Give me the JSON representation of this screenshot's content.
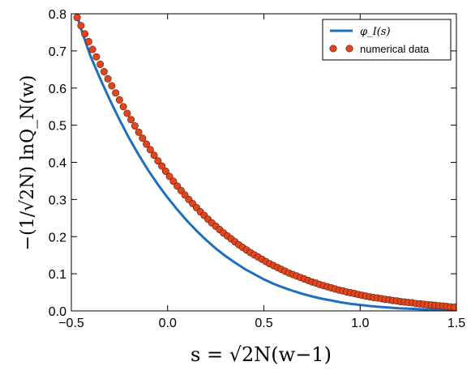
{
  "chart_data": {
    "type": "line",
    "xlim": [
      -0.5,
      1.5
    ],
    "ylim": [
      0.0,
      0.8
    ],
    "xticks": [
      -0.5,
      0.0,
      0.5,
      1.0,
      1.5
    ],
    "yticks": [
      0.0,
      0.1,
      0.2,
      0.3,
      0.4,
      0.5,
      0.6,
      0.7,
      0.8
    ],
    "xtick_labels": [
      "−0.5",
      "0.0",
      "0.5",
      "1.0",
      "1.5"
    ],
    "ytick_labels": [
      "0.0",
      "0.1",
      "0.2",
      "0.3",
      "0.4",
      "0.5",
      "0.6",
      "0.7",
      "0.8"
    ],
    "xlabel": "s = √2N(w−1)",
    "ylabel": "−(1/√2N) lnQ_N(w)",
    "grid": false,
    "legend_position": "top-right",
    "series": [
      {
        "name": "φ_I(s)",
        "kind": "line",
        "color": "#1f6fbf",
        "x": [
          -0.47,
          -0.45,
          -0.4,
          -0.35,
          -0.3,
          -0.25,
          -0.2,
          -0.15,
          -0.1,
          -0.05,
          0.0,
          0.05,
          0.1,
          0.15,
          0.2,
          0.25,
          0.3,
          0.35,
          0.4,
          0.45,
          0.5,
          0.55,
          0.6,
          0.65,
          0.7,
          0.75,
          0.8,
          0.85,
          0.9,
          0.95,
          1.0,
          1.05,
          1.1,
          1.15,
          1.2,
          1.25,
          1.3,
          1.35,
          1.4,
          1.45,
          1.5
        ],
        "y": [
          0.795,
          0.76,
          0.685,
          0.625,
          0.568,
          0.515,
          0.465,
          0.42,
          0.378,
          0.34,
          0.305,
          0.273,
          0.243,
          0.216,
          0.191,
          0.168,
          0.148,
          0.13,
          0.113,
          0.099,
          0.085,
          0.073,
          0.063,
          0.054,
          0.046,
          0.039,
          0.033,
          0.028,
          0.023,
          0.019,
          0.016,
          0.013,
          0.011,
          0.009,
          0.007,
          0.006,
          0.005,
          0.004,
          0.003,
          0.002,
          0.002
        ]
      },
      {
        "name": "numerical data",
        "kind": "scatter",
        "color": "#e2461e",
        "x": [
          -0.47,
          -0.45,
          -0.43,
          -0.41,
          -0.39,
          -0.37,
          -0.35,
          -0.33,
          -0.31,
          -0.29,
          -0.27,
          -0.25,
          -0.23,
          -0.21,
          -0.19,
          -0.17,
          -0.15,
          -0.13,
          -0.11,
          -0.09,
          -0.07,
          -0.05,
          -0.03,
          -0.01,
          0.01,
          0.03,
          0.05,
          0.07,
          0.09,
          0.11,
          0.13,
          0.15,
          0.17,
          0.19,
          0.21,
          0.23,
          0.25,
          0.27,
          0.29,
          0.31,
          0.33,
          0.35,
          0.37,
          0.39,
          0.41,
          0.43,
          0.45,
          0.47,
          0.49,
          0.51,
          0.53,
          0.55,
          0.57,
          0.59,
          0.61,
          0.63,
          0.65,
          0.67,
          0.69,
          0.71,
          0.73,
          0.75,
          0.77,
          0.79,
          0.81,
          0.83,
          0.85,
          0.87,
          0.89,
          0.91,
          0.93,
          0.95,
          0.97,
          0.99,
          1.01,
          1.03,
          1.05,
          1.07,
          1.09,
          1.11,
          1.13,
          1.15,
          1.17,
          1.19,
          1.21,
          1.23,
          1.25,
          1.27,
          1.29,
          1.31,
          1.33,
          1.35,
          1.37,
          1.39,
          1.41,
          1.43,
          1.45,
          1.47,
          1.49
        ],
        "y": [
          0.79,
          0.768,
          0.746,
          0.725,
          0.704,
          0.684,
          0.664,
          0.644,
          0.625,
          0.606,
          0.587,
          0.568,
          0.55,
          0.532,
          0.515,
          0.498,
          0.481,
          0.465,
          0.449,
          0.434,
          0.419,
          0.404,
          0.39,
          0.376,
          0.362,
          0.349,
          0.336,
          0.324,
          0.312,
          0.3,
          0.289,
          0.278,
          0.267,
          0.257,
          0.247,
          0.237,
          0.228,
          0.219,
          0.21,
          0.202,
          0.194,
          0.186,
          0.178,
          0.171,
          0.164,
          0.157,
          0.151,
          0.145,
          0.139,
          0.133,
          0.127,
          0.122,
          0.117,
          0.112,
          0.107,
          0.102,
          0.098,
          0.094,
          0.09,
          0.086,
          0.082,
          0.078,
          0.075,
          0.071,
          0.068,
          0.065,
          0.062,
          0.059,
          0.056,
          0.054,
          0.051,
          0.049,
          0.047,
          0.044,
          0.042,
          0.04,
          0.038,
          0.036,
          0.035,
          0.033,
          0.031,
          0.03,
          0.028,
          0.027,
          0.025,
          0.024,
          0.023,
          0.022,
          0.02,
          0.019,
          0.018,
          0.017,
          0.016,
          0.015,
          0.014,
          0.013,
          0.012,
          0.011,
          0.01
        ]
      }
    ]
  }
}
